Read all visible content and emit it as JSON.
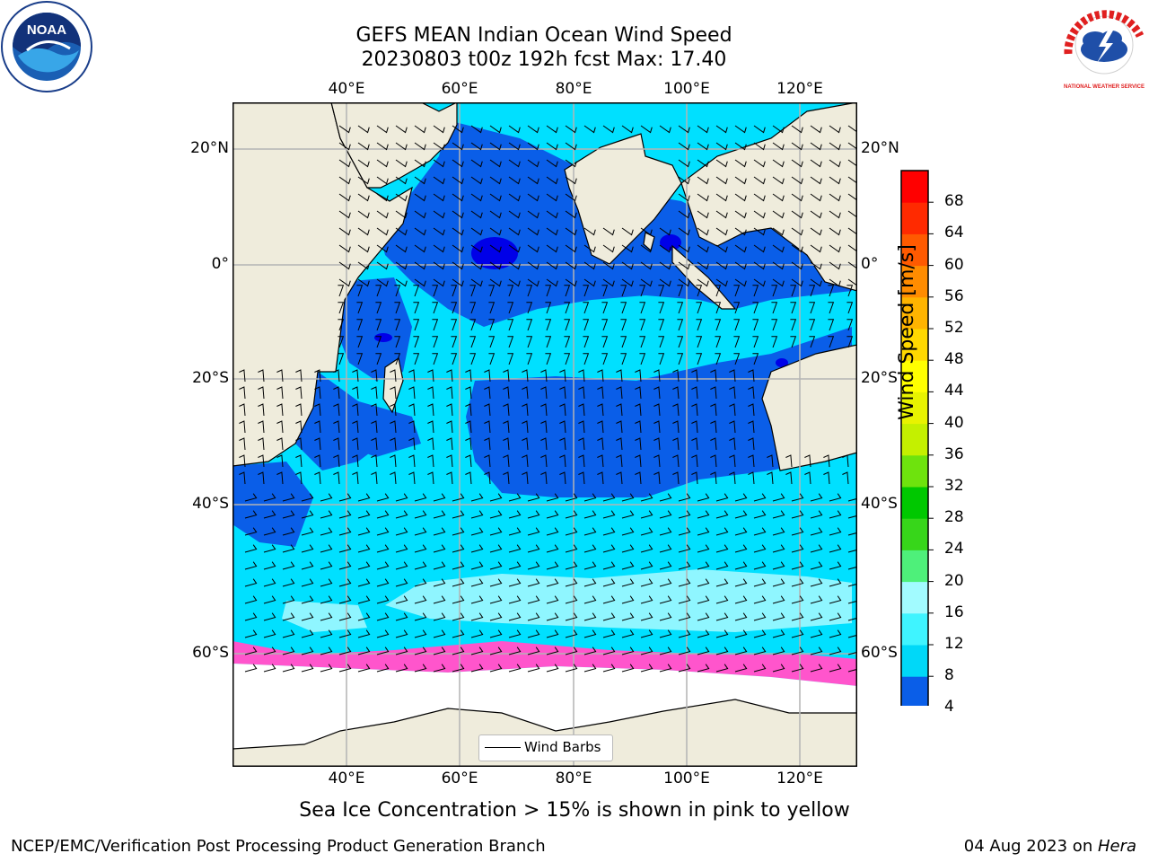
{
  "title": {
    "line1": "GEFS MEAN Indian Ocean Wind Speed",
    "line2": "20230803 t00z 192h fcst   Max: 17.40"
  },
  "longitude_labels": [
    "40°E",
    "60°E",
    "80°E",
    "100°E",
    "120°E"
  ],
  "latitude_labels": [
    "20°N",
    "0°",
    "20°S",
    "40°S",
    "60°S"
  ],
  "colorbar": {
    "label": "Wind Speed [m/s]",
    "ticks": [
      "4",
      "8",
      "12",
      "16",
      "20",
      "24",
      "28",
      "32",
      "36",
      "40",
      "44",
      "48",
      "52",
      "56",
      "60",
      "64",
      "68"
    ],
    "colors": [
      "#0a5ee8",
      "#00d8f8",
      "#3ff4ff",
      "#a2fbff",
      "#4ef07a",
      "#37d61a",
      "#00c800",
      "#6ee30d",
      "#c4f000",
      "#e8f300",
      "#ffff00",
      "#ffd800",
      "#ffb400",
      "#ff8c00",
      "#ff5a00",
      "#ff2a00",
      "#ff0000"
    ],
    "under_color": "#0000ff"
  },
  "legend": {
    "label": "Wind Barbs"
  },
  "caption": "Sea Ice Concentration > 15% is shown in pink to yellow",
  "footer": {
    "left": "NCEP/EMC/Verification Post Processing Product Generation Branch",
    "right_prefix": "04 Aug 2023 on ",
    "right_italic": "Hera"
  },
  "logos": {
    "noaa_text": "NOAA",
    "nws_text": "NATIONAL WEATHER SERVICE"
  },
  "map_colors": {
    "land": "#efecdc",
    "ocean_dark": "#0a5ee8",
    "ocean_mid": "#00e0ff",
    "ocean_light": "#9ff8ff",
    "calm": "#0000e8",
    "ice": "#ff55cc",
    "grid": "#b4b4b4"
  }
}
